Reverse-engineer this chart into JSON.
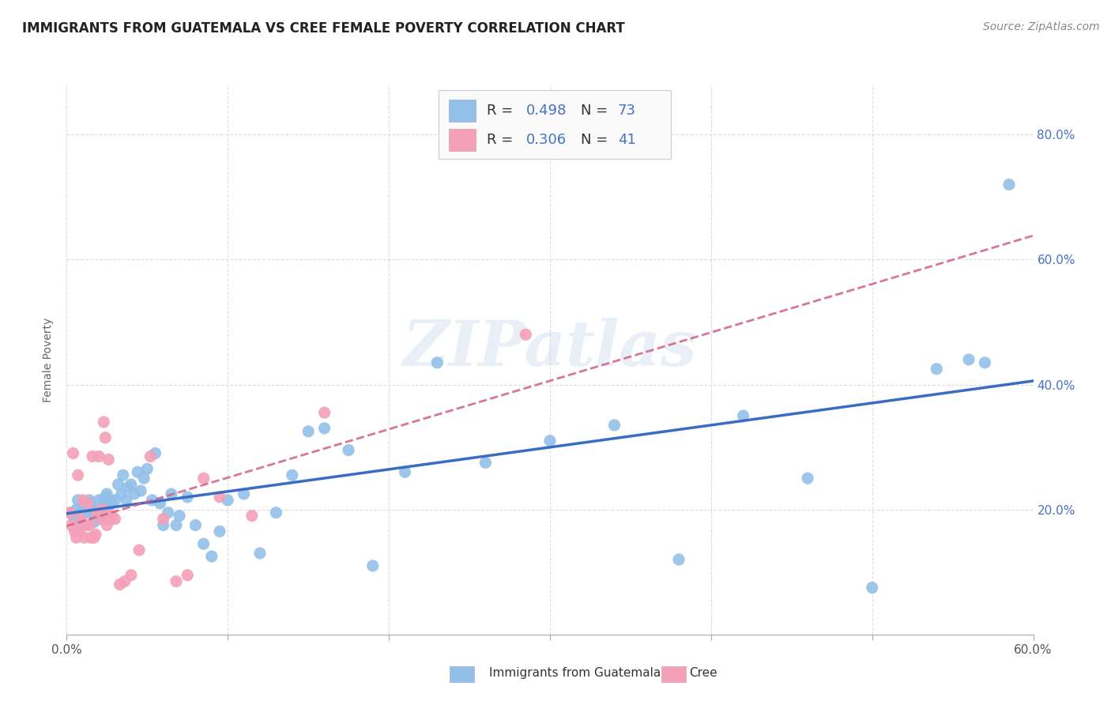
{
  "title": "IMMIGRANTS FROM GUATEMALA VS CREE FEMALE POVERTY CORRELATION CHART",
  "source": "Source: ZipAtlas.com",
  "ylabel": "Female Poverty",
  "xlim": [
    0.0,
    0.6
  ],
  "ylim": [
    0.0,
    0.88
  ],
  "blue_color": "#92C0E8",
  "pink_color": "#F4A0B8",
  "blue_line_color": "#3A6CC4",
  "pink_line_color": "#D06080",
  "blue_scatter_x": [
    0.003,
    0.004,
    0.005,
    0.006,
    0.007,
    0.008,
    0.009,
    0.01,
    0.011,
    0.012,
    0.013,
    0.014,
    0.015,
    0.016,
    0.017,
    0.018,
    0.019,
    0.02,
    0.021,
    0.022,
    0.023,
    0.024,
    0.025,
    0.026,
    0.027,
    0.028,
    0.03,
    0.032,
    0.034,
    0.035,
    0.037,
    0.038,
    0.04,
    0.042,
    0.044,
    0.046,
    0.048,
    0.05,
    0.053,
    0.055,
    0.058,
    0.06,
    0.063,
    0.065,
    0.068,
    0.07,
    0.075,
    0.08,
    0.085,
    0.09,
    0.095,
    0.1,
    0.11,
    0.12,
    0.13,
    0.14,
    0.15,
    0.16,
    0.175,
    0.19,
    0.21,
    0.23,
    0.26,
    0.3,
    0.34,
    0.38,
    0.42,
    0.46,
    0.5,
    0.54,
    0.56,
    0.57,
    0.585
  ],
  "blue_scatter_y": [
    0.195,
    0.19,
    0.185,
    0.2,
    0.215,
    0.175,
    0.19,
    0.2,
    0.21,
    0.205,
    0.195,
    0.215,
    0.21,
    0.195,
    0.18,
    0.2,
    0.195,
    0.215,
    0.185,
    0.195,
    0.215,
    0.22,
    0.225,
    0.205,
    0.215,
    0.21,
    0.215,
    0.24,
    0.225,
    0.255,
    0.215,
    0.235,
    0.24,
    0.225,
    0.26,
    0.23,
    0.25,
    0.265,
    0.215,
    0.29,
    0.21,
    0.175,
    0.195,
    0.225,
    0.175,
    0.19,
    0.22,
    0.175,
    0.145,
    0.125,
    0.165,
    0.215,
    0.225,
    0.13,
    0.195,
    0.255,
    0.325,
    0.33,
    0.295,
    0.11,
    0.26,
    0.435,
    0.275,
    0.31,
    0.335,
    0.12,
    0.35,
    0.25,
    0.075,
    0.425,
    0.44,
    0.435,
    0.72
  ],
  "pink_scatter_x": [
    0.002,
    0.003,
    0.004,
    0.005,
    0.006,
    0.007,
    0.008,
    0.009,
    0.01,
    0.011,
    0.012,
    0.013,
    0.014,
    0.015,
    0.016,
    0.017,
    0.018,
    0.019,
    0.02,
    0.021,
    0.022,
    0.023,
    0.024,
    0.025,
    0.026,
    0.027,
    0.028,
    0.03,
    0.033,
    0.036,
    0.04,
    0.045,
    0.052,
    0.06,
    0.068,
    0.075,
    0.085,
    0.095,
    0.115,
    0.16,
    0.285
  ],
  "pink_scatter_y": [
    0.195,
    0.175,
    0.29,
    0.165,
    0.155,
    0.255,
    0.165,
    0.185,
    0.215,
    0.155,
    0.175,
    0.21,
    0.175,
    0.155,
    0.285,
    0.155,
    0.16,
    0.195,
    0.285,
    0.185,
    0.2,
    0.34,
    0.315,
    0.175,
    0.28,
    0.185,
    0.19,
    0.185,
    0.08,
    0.085,
    0.095,
    0.135,
    0.285,
    0.185,
    0.085,
    0.095,
    0.25,
    0.22,
    0.19,
    0.355,
    0.48
  ],
  "watermark": "ZIPatlas",
  "background_color": "#FFFFFF",
  "grid_color": "#DDDDDD",
  "legend_label1": "Immigrants from Guatemala",
  "legend_label2": "Cree"
}
